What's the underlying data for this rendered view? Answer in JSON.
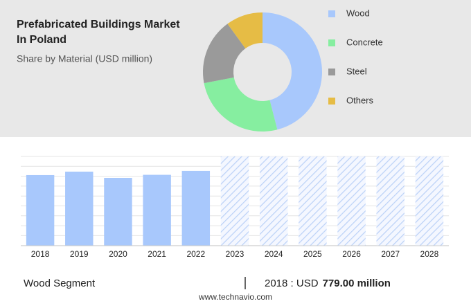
{
  "chart_data": [
    {
      "type": "pie",
      "title": "Prefabricated Buildings Market In Poland",
      "subtitle": "Share by Material (USD million)",
      "categories": [
        "Wood",
        "Concrete",
        "Steel",
        "Others"
      ],
      "values": [
        46,
        26,
        18,
        10
      ],
      "colors": [
        "#a8c8fc",
        "#86eea0",
        "#9a9a9a",
        "#e6bc45"
      ],
      "donut": true
    },
    {
      "type": "bar",
      "categories": [
        "2018",
        "2019",
        "2020",
        "2021",
        "2022",
        "2023",
        "2024",
        "2025",
        "2026",
        "2027",
        "2028"
      ],
      "values": [
        779,
        817,
        748,
        782,
        825,
        null,
        null,
        null,
        null,
        null,
        null
      ],
      "color": "#a8c8fc"
    }
  ],
  "footer": {
    "segment": "Wood Segment",
    "year": "2018 : USD",
    "value": "779.00 million",
    "source": "www.technavio.com"
  }
}
